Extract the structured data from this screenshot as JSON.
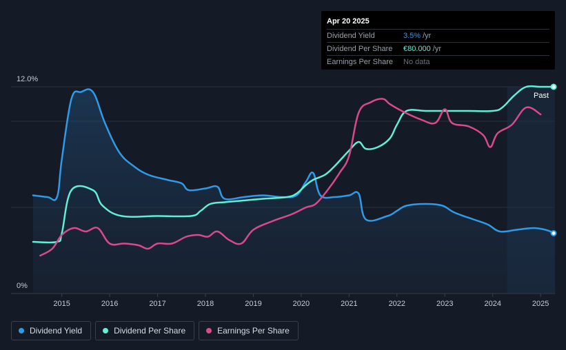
{
  "tooltip": {
    "date": "Apr 20 2025",
    "rows": [
      {
        "label": "Dividend Yield",
        "value": "3.5%",
        "unit": "/yr"
      },
      {
        "label": "Dividend Per Share",
        "value": "€80.000",
        "unit": "/yr"
      },
      {
        "label": "Earnings Per Share",
        "value": "No data",
        "unit": ""
      }
    ]
  },
  "legend": [
    {
      "label": "Dividend Yield",
      "color": "#2f9be8"
    },
    {
      "label": "Dividend Per Share",
      "color": "#5ff0d6"
    },
    {
      "label": "Earnings Per Share",
      "color": "#d94a8c"
    }
  ],
  "chart_data": {
    "type": "line",
    "y_axis_labels": [
      "12.0%",
      "0%"
    ],
    "ylim": [
      0,
      12
    ],
    "xlim": [
      2014.4,
      2025.3
    ],
    "x_ticks": [
      2015,
      2016,
      2017,
      2018,
      2019,
      2020,
      2021,
      2022,
      2023,
      2024,
      2025
    ],
    "past_label": "Past",
    "forecast_start": 2024.3,
    "grid": true,
    "legend_position": "bottom-left",
    "series": [
      {
        "name": "Dividend Yield",
        "color": "#2f9be8",
        "area": true,
        "points": [
          [
            2014.4,
            5.7
          ],
          [
            2014.7,
            5.6
          ],
          [
            2014.9,
            5.6
          ],
          [
            2015.0,
            7.8
          ],
          [
            2015.2,
            11.3
          ],
          [
            2015.4,
            11.7
          ],
          [
            2015.65,
            11.7
          ],
          [
            2015.9,
            9.9
          ],
          [
            2016.2,
            8.2
          ],
          [
            2016.5,
            7.4
          ],
          [
            2016.8,
            6.9
          ],
          [
            2017.2,
            6.6
          ],
          [
            2017.5,
            6.4
          ],
          [
            2017.65,
            6.0
          ],
          [
            2018.0,
            6.1
          ],
          [
            2018.25,
            6.2
          ],
          [
            2018.4,
            5.5
          ],
          [
            2018.8,
            5.6
          ],
          [
            2019.2,
            5.7
          ],
          [
            2019.6,
            5.6
          ],
          [
            2019.9,
            5.7
          ],
          [
            2020.1,
            6.5
          ],
          [
            2020.25,
            7.0
          ],
          [
            2020.4,
            5.7
          ],
          [
            2020.7,
            5.6
          ],
          [
            2021.0,
            5.7
          ],
          [
            2021.2,
            5.8
          ],
          [
            2021.35,
            4.3
          ],
          [
            2021.8,
            4.5
          ],
          [
            2022.0,
            4.8
          ],
          [
            2022.2,
            5.1
          ],
          [
            2022.6,
            5.2
          ],
          [
            2022.95,
            5.1
          ],
          [
            2023.2,
            4.7
          ],
          [
            2023.6,
            4.3
          ],
          [
            2023.9,
            4.0
          ],
          [
            2024.15,
            3.6
          ],
          [
            2024.5,
            3.7
          ],
          [
            2024.85,
            3.8
          ],
          [
            2025.1,
            3.7
          ],
          [
            2025.3,
            3.5
          ]
        ]
      },
      {
        "name": "Dividend Per Share",
        "color": "#5ff0d6",
        "points": [
          [
            2014.4,
            3.0
          ],
          [
            2014.9,
            3.0
          ],
          [
            2015.0,
            3.5
          ],
          [
            2015.2,
            6.0
          ],
          [
            2015.65,
            6.0
          ],
          [
            2015.85,
            5.1
          ],
          [
            2016.25,
            4.5
          ],
          [
            2017.0,
            4.5
          ],
          [
            2017.7,
            4.5
          ],
          [
            2017.9,
            4.8
          ],
          [
            2018.1,
            5.2
          ],
          [
            2018.4,
            5.3
          ],
          [
            2018.8,
            5.4
          ],
          [
            2019.2,
            5.5
          ],
          [
            2019.7,
            5.6
          ],
          [
            2019.9,
            5.8
          ],
          [
            2020.1,
            6.3
          ],
          [
            2020.25,
            6.6
          ],
          [
            2020.5,
            6.9
          ],
          [
            2020.7,
            7.4
          ],
          [
            2021.0,
            8.3
          ],
          [
            2021.2,
            8.8
          ],
          [
            2021.35,
            8.4
          ],
          [
            2021.6,
            8.5
          ],
          [
            2021.85,
            9.0
          ],
          [
            2022.0,
            9.8
          ],
          [
            2022.2,
            10.6
          ],
          [
            2022.6,
            10.6
          ],
          [
            2023.0,
            10.6
          ],
          [
            2023.5,
            10.6
          ],
          [
            2024.0,
            10.6
          ],
          [
            2024.2,
            10.8
          ],
          [
            2024.45,
            11.5
          ],
          [
            2024.7,
            12.0
          ],
          [
            2025.0,
            12.0
          ],
          [
            2025.3,
            12.0
          ]
        ]
      },
      {
        "name": "Earnings Per Share",
        "color": "#d94a8c",
        "points": [
          [
            2014.55,
            2.2
          ],
          [
            2014.8,
            2.6
          ],
          [
            2015.0,
            3.4
          ],
          [
            2015.25,
            3.8
          ],
          [
            2015.5,
            3.6
          ],
          [
            2015.75,
            3.8
          ],
          [
            2016.0,
            2.9
          ],
          [
            2016.3,
            2.9
          ],
          [
            2016.6,
            2.8
          ],
          [
            2016.8,
            2.6
          ],
          [
            2017.0,
            2.9
          ],
          [
            2017.3,
            2.9
          ],
          [
            2017.6,
            3.3
          ],
          [
            2017.85,
            3.4
          ],
          [
            2018.05,
            3.3
          ],
          [
            2018.25,
            3.6
          ],
          [
            2018.5,
            3.1
          ],
          [
            2018.75,
            2.9
          ],
          [
            2019.0,
            3.7
          ],
          [
            2019.4,
            4.2
          ],
          [
            2019.8,
            4.6
          ],
          [
            2020.1,
            5.0
          ],
          [
            2020.3,
            5.2
          ],
          [
            2020.55,
            6.0
          ],
          [
            2020.8,
            7.0
          ],
          [
            2021.0,
            8.0
          ],
          [
            2021.2,
            10.5
          ],
          [
            2021.45,
            11.1
          ],
          [
            2021.7,
            11.3
          ],
          [
            2021.85,
            11.0
          ],
          [
            2022.1,
            10.6
          ],
          [
            2022.5,
            10.1
          ],
          [
            2022.8,
            9.9
          ],
          [
            2023.0,
            10.7
          ],
          [
            2023.15,
            9.9
          ],
          [
            2023.5,
            9.7
          ],
          [
            2023.8,
            9.2
          ],
          [
            2023.95,
            8.5
          ],
          [
            2024.1,
            9.3
          ],
          [
            2024.4,
            9.8
          ],
          [
            2024.7,
            10.8
          ],
          [
            2025.0,
            10.4
          ]
        ]
      }
    ]
  }
}
